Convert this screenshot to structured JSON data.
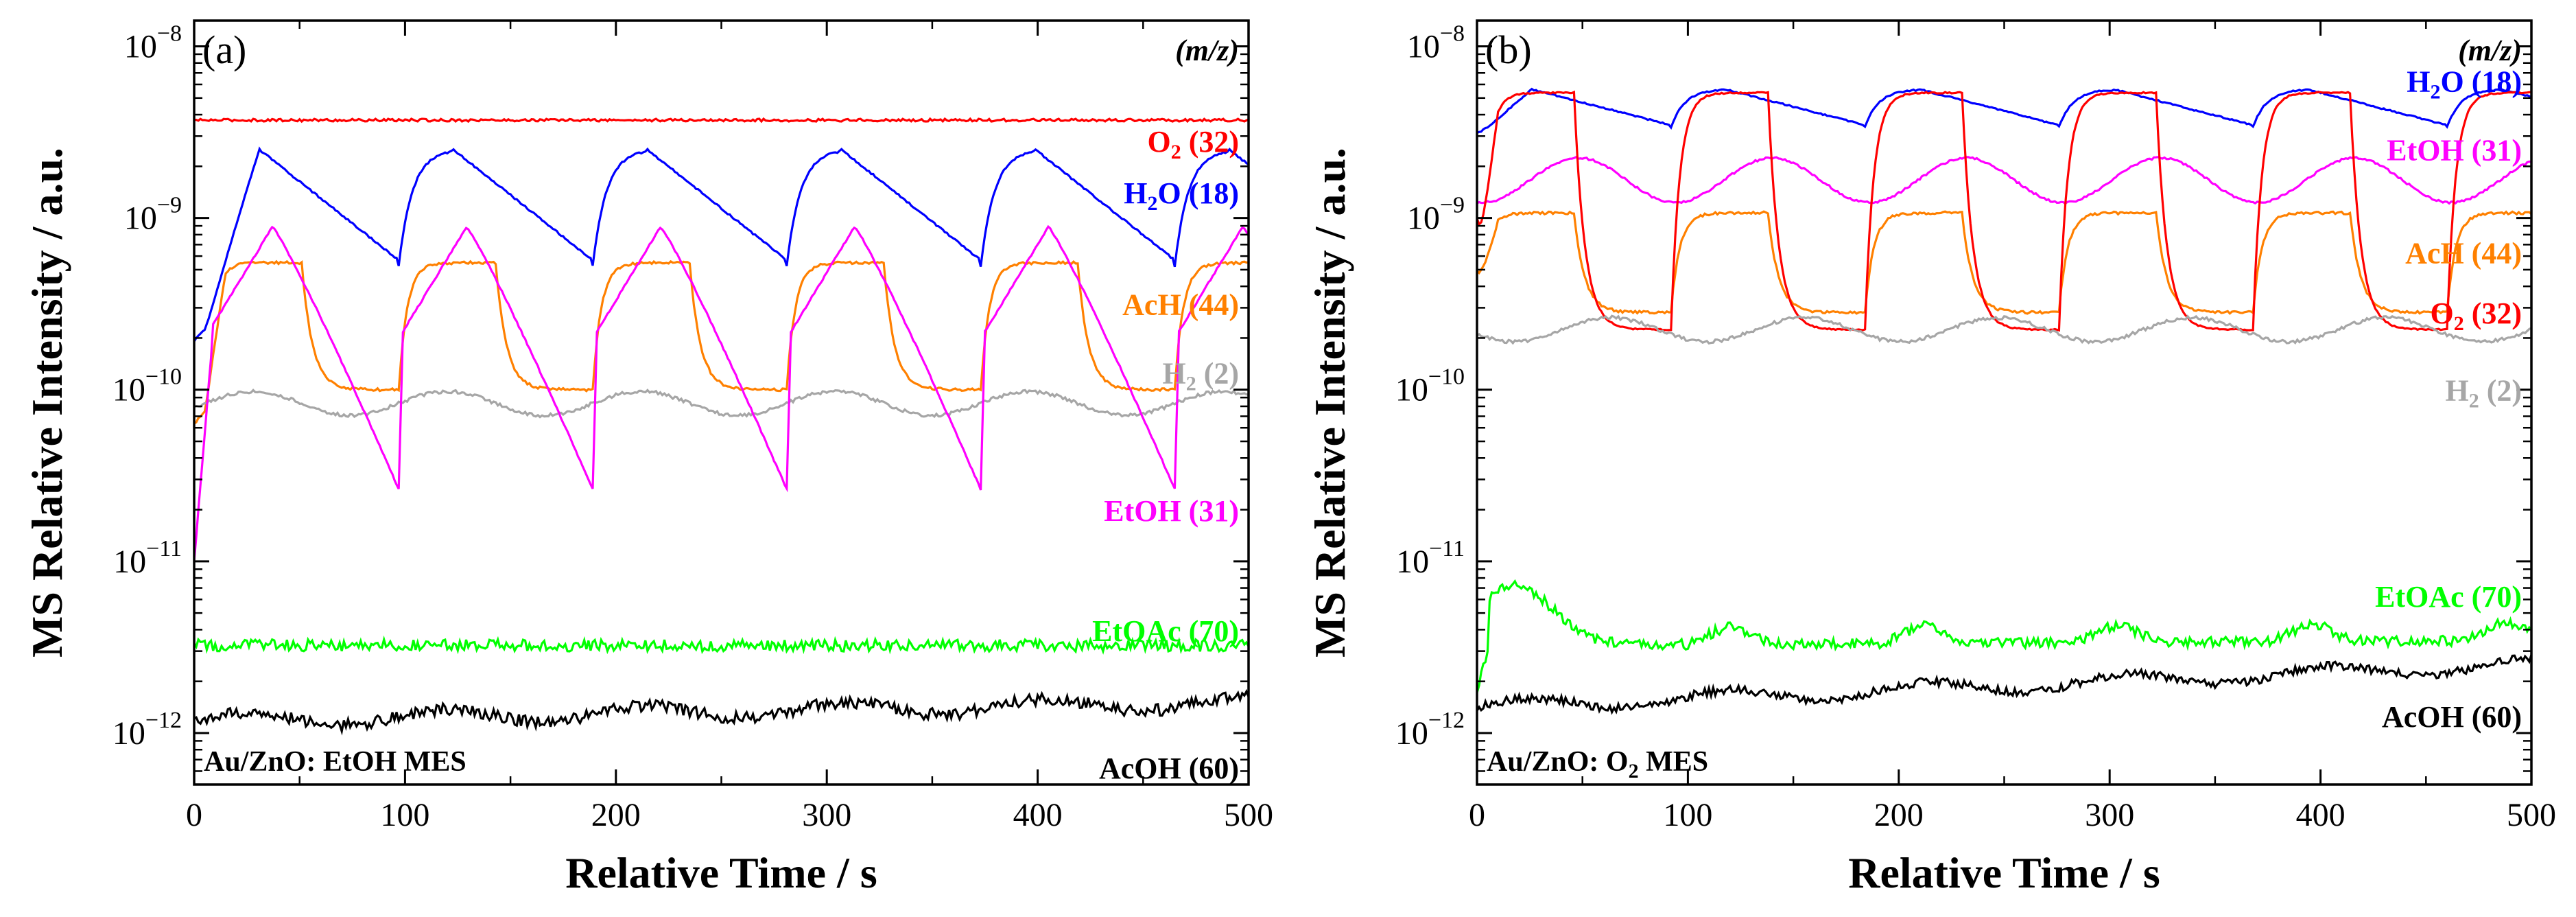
{
  "chart_data": [
    {
      "type": "line",
      "panel_label": "(a)",
      "caption": "Au/ZnO: EtOH MES",
      "legend_header": "(m/z)",
      "xlabel": "Relative Time / s",
      "ylabel": "MS Relative Intensity / a.u.",
      "xlim": [
        0,
        500
      ],
      "ylog_lim": [
        -12.3,
        -7.85
      ],
      "yscale": "log",
      "xticks": [
        0,
        100,
        200,
        300,
        400,
        500
      ],
      "xtick_labels": [
        "0",
        "100",
        "200",
        "300",
        "400",
        "500"
      ],
      "ytick_exponents": [
        -12,
        -11,
        -10,
        -9,
        -8
      ],
      "series": [
        {
          "name": "O2 (32)",
          "label_main": "O",
          "label_sub": "2",
          "label_tail": " (32)",
          "color": "#ff0000",
          "label_log": -8.55,
          "model": {
            "kind": "flat",
            "base": -8.43,
            "noise": 0.008
          }
        },
        {
          "name": "H2O (18)",
          "label_main": "H",
          "label_sub": "2",
          "label_tail": "O (18)",
          "color": "#0000ff",
          "label_log": -8.85,
          "model": {
            "kind": "sawtooth",
            "period": 92,
            "phase": 5,
            "low": -9.28,
            "high": -8.6,
            "start": -9.72,
            "noise": 0.005
          }
        },
        {
          "name": "AcH (44)",
          "label_main": "AcH (44)",
          "label_sub": "",
          "label_tail": "",
          "color": "#ff8000",
          "label_log": -9.5,
          "model": {
            "kind": "square",
            "period": 92,
            "phase": 5,
            "low": -10.0,
            "high": -9.26,
            "start": -10.2,
            "noise": 0.008
          }
        },
        {
          "name": "H2 (2)",
          "label_main": "H",
          "label_sub": "2",
          "label_tail": " (2)",
          "color": "#a6a6a6",
          "label_log": -9.9,
          "model": {
            "kind": "wave",
            "base": -10.08,
            "amp": 0.07,
            "period": 92,
            "phase": 5,
            "noise": 0.01
          }
        },
        {
          "name": "EtOH (31)",
          "label_main": "EtOH (31)",
          "label_sub": "",
          "label_tail": "",
          "color": "#ff00ff",
          "label_log": -10.7,
          "model": {
            "kind": "drop",
            "period": 92,
            "phase": 5,
            "low": -10.58,
            "high": -9.05,
            "start": -11.0,
            "noise": 0.005
          }
        },
        {
          "name": "EtOAc (70)",
          "label_main": "EtOAc (70)",
          "label_sub": "",
          "label_tail": "",
          "color": "#00ff00",
          "label_log": -11.4,
          "model": {
            "kind": "flat",
            "base": -11.49,
            "noise": 0.035
          }
        },
        {
          "name": "AcOH (60)",
          "label_main": "AcOH (60)",
          "label_sub": "",
          "label_tail": "",
          "color": "#000000",
          "label_log": -12.2,
          "model": {
            "kind": "drift",
            "base": -11.93,
            "end": -11.82,
            "amp": 0.04,
            "noise": 0.035
          }
        }
      ]
    },
    {
      "type": "line",
      "panel_label": "(b)",
      "caption": "Au/ZnO: O2 MES",
      "caption_main": "Au/ZnO: O",
      "caption_sub": "2",
      "caption_tail": " MES",
      "legend_header": "(m/z)",
      "xlabel": "Relative Time / s",
      "ylabel": "MS Relative Intensity / a.u.",
      "xlim": [
        0,
        500
      ],
      "ylog_lim": [
        -12.3,
        -7.85
      ],
      "yscale": "log",
      "xticks": [
        0,
        100,
        200,
        300,
        400,
        500
      ],
      "xtick_labels": [
        "0",
        "100",
        "200",
        "300",
        "400",
        "500"
      ],
      "ytick_exponents": [
        -12,
        -11,
        -10,
        -9,
        -8
      ],
      "series": [
        {
          "name": "H2O (18)",
          "label_main": "H",
          "label_sub": "2",
          "label_tail": "O (18)",
          "color": "#0000ff",
          "label_log": -8.2,
          "model": {
            "kind": "sawtooth",
            "period": 92,
            "phase": 0,
            "low": -8.47,
            "high": -8.25,
            "start": -8.5,
            "noise": 0.004
          }
        },
        {
          "name": "EtOH (31)",
          "label_main": "EtOH (31)",
          "label_sub": "",
          "label_tail": "",
          "color": "#ff00ff",
          "label_log": -8.6,
          "model": {
            "kind": "wave",
            "base": -8.78,
            "amp": 0.13,
            "period": 92,
            "phase": 25,
            "noise": 0.006
          }
        },
        {
          "name": "AcH (44)",
          "label_main": "AcH (44)",
          "label_sub": "",
          "label_tail": "",
          "color": "#ff8000",
          "label_log": -9.2,
          "model": {
            "kind": "square",
            "period": 92,
            "phase": 0,
            "low": -9.55,
            "high": -8.97,
            "start": -9.3,
            "noise": 0.008
          }
        },
        {
          "name": "O2 (32)",
          "label_main": "O",
          "label_sub": "2",
          "label_tail": " (32)",
          "color": "#ff0000",
          "label_log": -9.55,
          "model": {
            "kind": "square",
            "period": 92,
            "phase": 0,
            "low": -9.65,
            "high": -8.27,
            "start": -9.0,
            "noise": 0.004
          }
        },
        {
          "name": "H2 (2)",
          "label_main": "H",
          "label_sub": "2",
          "label_tail": " (2)",
          "color": "#a6a6a6",
          "label_log": -10.0,
          "model": {
            "kind": "wave",
            "base": -9.65,
            "amp": 0.07,
            "period": 92,
            "phase": 40,
            "noise": 0.01
          }
        },
        {
          "name": "EtOAc (70)",
          "label_main": "EtOAc (70)",
          "label_sub": "",
          "label_tail": "",
          "color": "#00ff00",
          "label_log": -11.2,
          "model": {
            "kind": "spikes",
            "base": -11.49,
            "amp": 0.1,
            "first": 0.35,
            "period": 92,
            "noise": 0.03
          }
        },
        {
          "name": "AcOH (60)",
          "label_main": "AcOH (60)",
          "label_sub": "",
          "label_tail": "",
          "color": "#000000",
          "label_log": -11.9,
          "model": {
            "kind": "drift",
            "base": -11.85,
            "end": -11.6,
            "amp": 0.04,
            "noise": 0.025
          }
        }
      ]
    }
  ]
}
